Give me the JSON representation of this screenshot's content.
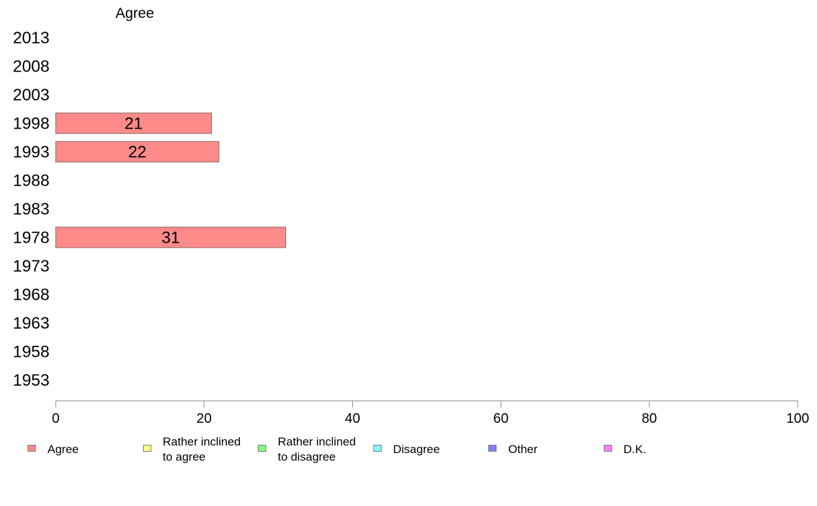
{
  "chart_data": {
    "type": "bar",
    "orientation": "horizontal",
    "title": "Agree",
    "categories": [
      "2013",
      "2008",
      "2003",
      "1998",
      "1993",
      "1988",
      "1983",
      "1978",
      "1973",
      "1968",
      "1963",
      "1958",
      "1953"
    ],
    "series": [
      {
        "name": "Agree",
        "color": "#ff8a8a",
        "values": [
          null,
          null,
          null,
          21,
          22,
          null,
          null,
          31,
          null,
          null,
          null,
          null,
          null
        ]
      }
    ],
    "xlim": [
      0,
      100
    ],
    "xticks": [
      "0",
      "20",
      "40",
      "60",
      "80",
      "100"
    ],
    "grid": false,
    "legend_placement": "bottom"
  },
  "legend": [
    {
      "label": "Agree",
      "color": "#ff8a8a"
    },
    {
      "label": "Rather inclined\nto agree",
      "color": "#ffff80"
    },
    {
      "label": "Rather inclined\nto disagree",
      "color": "#80ff80"
    },
    {
      "label": "Disagree",
      "color": "#80ffff"
    },
    {
      "label": "Other",
      "color": "#8080ff"
    },
    {
      "label": "D.K.",
      "color": "#ff80ff"
    }
  ]
}
